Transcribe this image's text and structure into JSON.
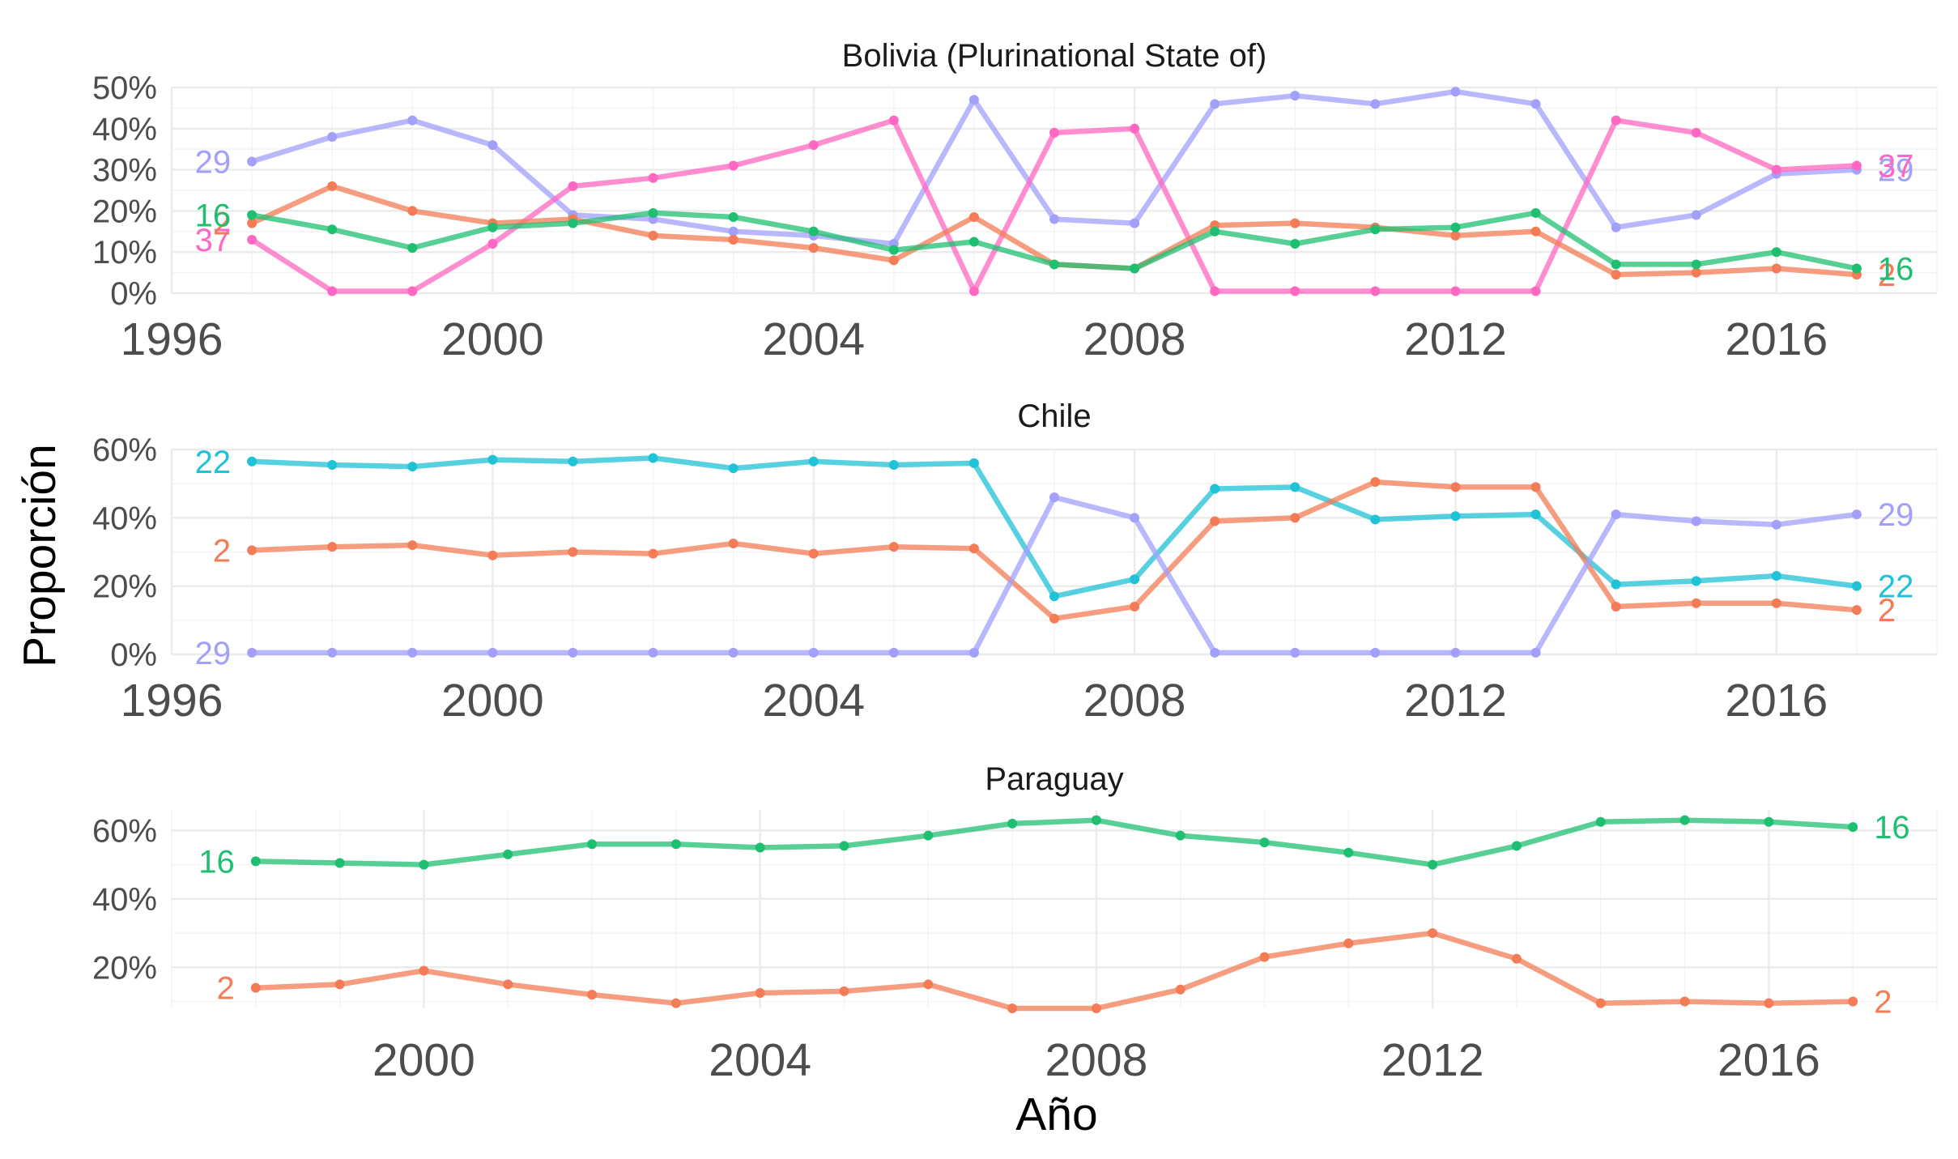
{
  "chart_data": {
    "type": "line",
    "xlabel": "Año",
    "ylabel": "Proporción",
    "facets": [
      {
        "title": "Bolivia (Plurinational State of)",
        "ylim": [
          0,
          50
        ],
        "yticks": [
          0,
          10,
          20,
          30,
          40,
          50
        ],
        "yticklabels": [
          "0%",
          "10%",
          "20%",
          "30%",
          "40%",
          "50%"
        ],
        "xlim": [
          1996,
          2018
        ],
        "xticks": [
          1996,
          2000,
          2004,
          2008,
          2012,
          2016
        ],
        "xticklabels": [
          "1996",
          "2000",
          "2004",
          "2008",
          "2012",
          "2016"
        ],
        "x": [
          1997,
          1998,
          1999,
          2000,
          2001,
          2002,
          2003,
          2004,
          2005,
          2006,
          2007,
          2008,
          2009,
          2010,
          2011,
          2012,
          2013,
          2014,
          2015,
          2016,
          2017
        ],
        "series": [
          {
            "name": "29",
            "color": "#a3a0fb",
            "values": [
              32,
              38,
              42,
              36,
              19,
              18,
              15,
              14,
              12,
              47,
              18,
              17,
              46,
              48,
              46,
              49,
              46,
              16,
              19,
              29,
              30
            ]
          },
          {
            "name": "37",
            "color": "#ff68c2",
            "values": [
              13,
              0.5,
              0.5,
              12,
              26,
              28,
              31,
              36,
              42,
              0.5,
              39,
              40,
              0.5,
              0.5,
              0.5,
              0.5,
              0.5,
              42,
              39,
              30,
              31
            ]
          },
          {
            "name": "2",
            "color": "#f37c56",
            "values": [
              17,
              26,
              20,
              17,
              18,
              14,
              13,
              11,
              8,
              18.5,
              7,
              6,
              16.5,
              17,
              16,
              14,
              15,
              4.5,
              5,
              6,
              4.5
            ]
          },
          {
            "name": "16",
            "color": "#1fbf72",
            "values": [
              19,
              15.5,
              11,
              16,
              17,
              19.5,
              18.5,
              15,
              10.5,
              12.5,
              7,
              6,
              15,
              12,
              15.5,
              16,
              19.5,
              7,
              7,
              10,
              6
            ]
          }
        ]
      },
      {
        "title": "Chile",
        "ylim": [
          0,
          60
        ],
        "yticks": [
          0,
          20,
          40,
          60
        ],
        "yticklabels": [
          "0%",
          "20%",
          "40%",
          "60%"
        ],
        "xlim": [
          1996,
          2018
        ],
        "xticks": [
          1996,
          2000,
          2004,
          2008,
          2012,
          2016
        ],
        "xticklabels": [
          "1996",
          "2000",
          "2004",
          "2008",
          "2012",
          "2016"
        ],
        "x": [
          1997,
          1998,
          1999,
          2000,
          2001,
          2002,
          2003,
          2004,
          2005,
          2006,
          2007,
          2008,
          2009,
          2010,
          2011,
          2012,
          2013,
          2014,
          2015,
          2016,
          2017
        ],
        "series": [
          {
            "name": "22",
            "color": "#1fc2d6",
            "values": [
              56.5,
              55.5,
              55,
              57,
              56.5,
              57.5,
              54.5,
              56.5,
              55.5,
              56,
              17,
              22,
              48.5,
              49,
              39.5,
              40.5,
              41,
              20.5,
              21.5,
              23,
              20
            ]
          },
          {
            "name": "2",
            "color": "#f37c56",
            "values": [
              30.5,
              31.5,
              32,
              29,
              30,
              29.5,
              32.5,
              29.5,
              31.5,
              31,
              10.5,
              14,
              39,
              40,
              50.5,
              49,
              49,
              14,
              15,
              15,
              13
            ]
          },
          {
            "name": "29",
            "color": "#a3a0fb",
            "values": [
              0.5,
              0.5,
              0.5,
              0.5,
              0.5,
              0.5,
              0.5,
              0.5,
              0.5,
              0.5,
              46,
              40,
              0.5,
              0.5,
              0.5,
              0.5,
              0.5,
              41,
              39,
              38,
              41
            ]
          }
        ]
      },
      {
        "title": "Paraguay",
        "ylim": [
          8,
          66
        ],
        "yticks": [
          20,
          40,
          60
        ],
        "yticklabels": [
          "20%",
          "40%",
          "60%"
        ],
        "xlim": [
          1997,
          2018
        ],
        "xticks": [
          2000,
          2004,
          2008,
          2012,
          2016
        ],
        "xticklabels": [
          "2000",
          "2004",
          "2008",
          "2012",
          "2016"
        ],
        "x": [
          1998,
          1999,
          2000,
          2001,
          2002,
          2003,
          2004,
          2005,
          2006,
          2007,
          2008,
          2009,
          2010,
          2011,
          2012,
          2013,
          2014,
          2015,
          2016,
          2017
        ],
        "series": [
          {
            "name": "16",
            "color": "#1fbf72",
            "values": [
              51,
              50.5,
              50,
              53,
              56,
              56,
              55,
              55.5,
              58.5,
              62,
              63,
              58.5,
              56.5,
              53.5,
              50,
              55.5,
              62.5,
              63,
              62.5,
              61
            ]
          },
          {
            "name": "2",
            "color": "#f37c56",
            "values": [
              14,
              15,
              19,
              15,
              12,
              9.5,
              12.5,
              13,
              15,
              8,
              8,
              13.5,
              23,
              27,
              30,
              22.5,
              9.5,
              10,
              9.5,
              10
            ]
          }
        ]
      }
    ]
  }
}
